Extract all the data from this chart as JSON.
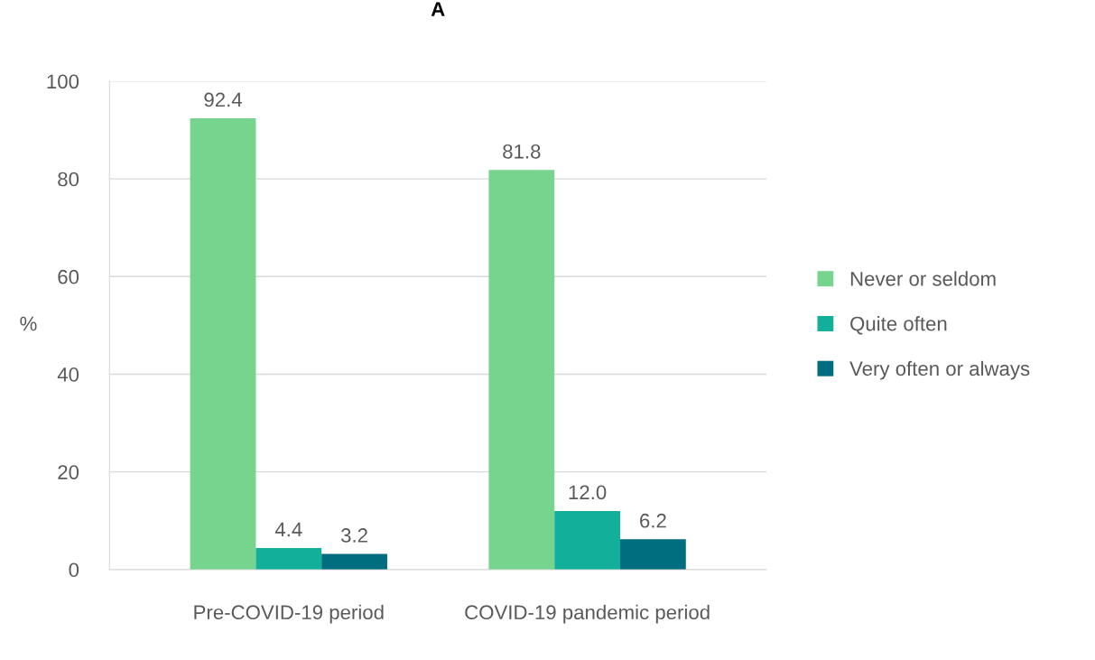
{
  "chart_data": {
    "type": "bar",
    "title": "A",
    "ylabel": "%",
    "categories": [
      "Pre-COVID-19 period",
      "COVID-19 pandemic period"
    ],
    "series": [
      {
        "name": "Never or seldom",
        "color": "#77d48e",
        "values": [
          92.4,
          81.8
        ],
        "value_labels": [
          "92.4",
          "81.8"
        ]
      },
      {
        "name": "Quite often",
        "color": "#12b09a",
        "values": [
          4.4,
          12.0
        ],
        "value_labels": [
          "4.4",
          "12.0"
        ]
      },
      {
        "name": "Very often or always",
        "color": "#006e7f",
        "values": [
          3.2,
          6.2
        ],
        "value_labels": [
          "3.2",
          "6.2"
        ]
      }
    ],
    "ylim": [
      0,
      100
    ],
    "yticks": [
      0,
      20,
      40,
      60,
      80,
      100
    ],
    "grid": "y",
    "legend": "right"
  }
}
